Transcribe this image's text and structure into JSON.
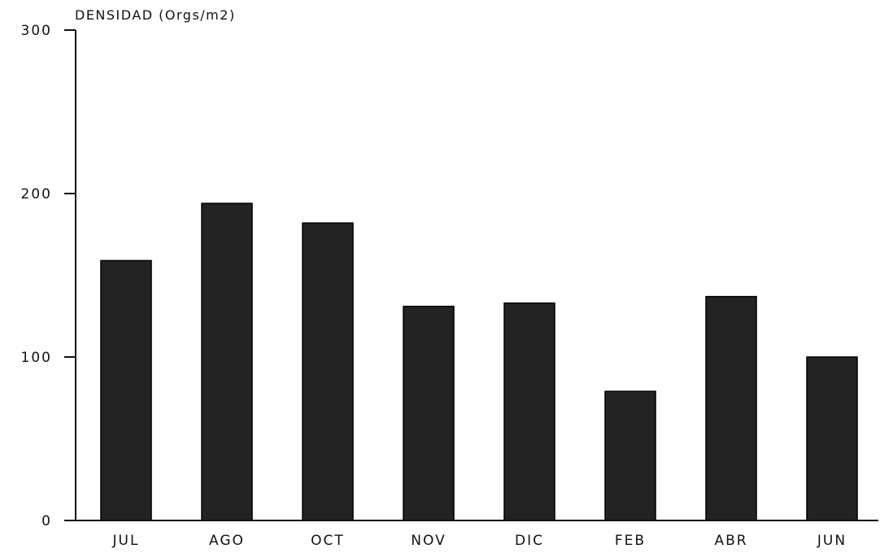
{
  "chart_data": {
    "type": "bar",
    "title": "",
    "ylabel": "DENSIDAD (Orgs/m2)",
    "xlabel": "",
    "categories": [
      "JUL",
      "AGO",
      "OCT",
      "NOV",
      "DIC",
      "FEB",
      "ABR",
      "JUN"
    ],
    "values": [
      159,
      194,
      182,
      131,
      133,
      79,
      137,
      100
    ],
    "ylim": [
      0,
      300
    ],
    "yticks": [
      "0",
      "100",
      "200",
      "300"
    ],
    "grid": false,
    "bar_color": "#232323"
  }
}
